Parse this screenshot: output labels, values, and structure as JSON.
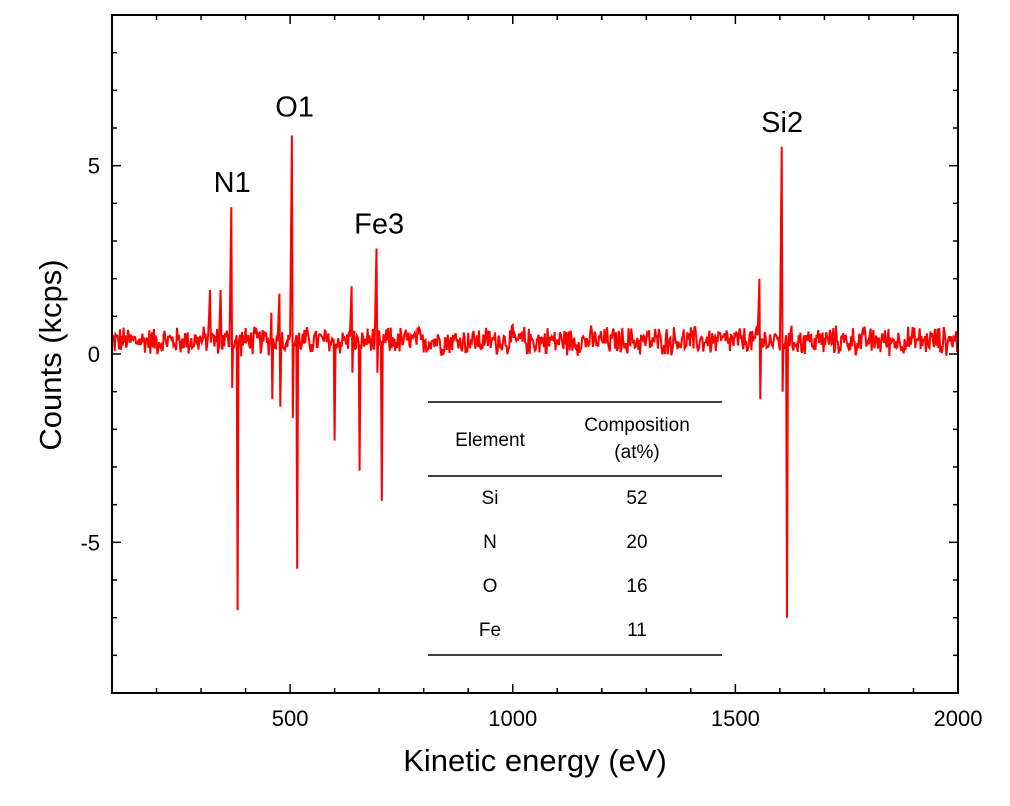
{
  "chart_data": {
    "type": "line",
    "xlabel": "Kinetic energy (eV)",
    "ylabel": "Counts (kcps)",
    "xlim": [
      100,
      2000
    ],
    "ylim": [
      -9,
      9
    ],
    "x_ticks": [
      500,
      1000,
      1500,
      2000
    ],
    "y_ticks": [
      -5,
      0,
      5
    ],
    "x_minor_step": 100,
    "y_minor_step": 1,
    "grid": false,
    "line_color": "#ff0000",
    "baseline": 0.35,
    "noise_amplitude": 0.45,
    "peaks": [
      {
        "x": 322,
        "max": 1.7,
        "min": 0.3
      },
      {
        "x": 345,
        "max": 1.7,
        "min": 0.2
      },
      {
        "x": 370,
        "max": 3.9,
        "min": -0.9
      },
      {
        "x": 381,
        "max": 0.5,
        "min": -6.8
      },
      {
        "x": 460,
        "max": 1.1,
        "min": -1.2
      },
      {
        "x": 478,
        "max": 1.6,
        "min": -1.4
      },
      {
        "x": 505,
        "max": 5.8,
        "min": -1.7
      },
      {
        "x": 515,
        "max": 0.5,
        "min": -5.7
      },
      {
        "x": 600,
        "max": 0.4,
        "min": -2.3
      },
      {
        "x": 640,
        "max": 1.8,
        "min": -0.5
      },
      {
        "x": 655,
        "max": 0.3,
        "min": -3.1
      },
      {
        "x": 695,
        "max": 2.8,
        "min": -0.5
      },
      {
        "x": 705,
        "max": 0.3,
        "min": -3.9
      },
      {
        "x": 1555,
        "max": 2.0,
        "min": -1.2
      },
      {
        "x": 1605,
        "max": 5.5,
        "min": -1.0
      },
      {
        "x": 1615,
        "max": 0.5,
        "min": -7.0
      }
    ],
    "annotations": [
      {
        "text": "N1",
        "x": 370,
        "y": 4.3
      },
      {
        "text": "O1",
        "x": 510,
        "y": 6.3
      },
      {
        "text": "Fe3",
        "x": 700,
        "y": 3.2
      },
      {
        "text": "Si2",
        "x": 1605,
        "y": 5.9
      }
    ],
    "inset_table": {
      "headers": [
        "Element",
        "Composition (at%)"
      ],
      "header_lines": [
        [
          "Element"
        ],
        [
          "Composition",
          "(at%)"
        ]
      ],
      "rows": [
        [
          "Si",
          "52"
        ],
        [
          "N",
          "20"
        ],
        [
          "O",
          "16"
        ],
        [
          "Fe",
          "11"
        ]
      ]
    }
  }
}
